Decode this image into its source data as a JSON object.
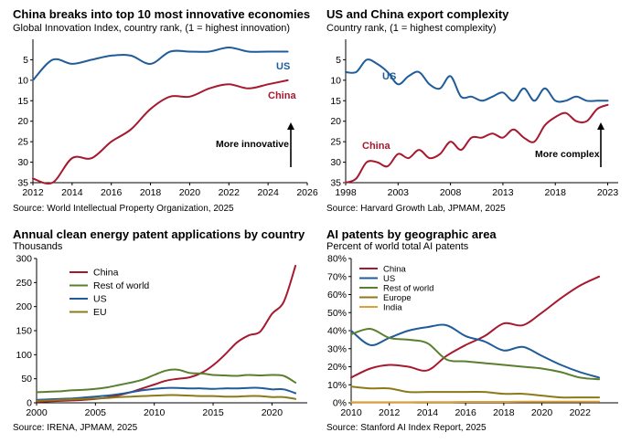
{
  "colors": {
    "china": "#A6192E",
    "us": "#1F5C99",
    "row": "#5B7F2F",
    "eu": "#8C7A1A",
    "india": "#E0A030",
    "axis": "#000000",
    "grid": "#d9d9d9"
  },
  "chart_data": [
    {
      "id": "gii",
      "type": "line",
      "title": "China breaks into top 10 most innovative economies",
      "subtitle": "Global Innovation Index, country rank, (1 = highest innovation)",
      "source": "Source: World Intellectual Property Organization, 2025",
      "annotation": "More innovative",
      "x_ticks": [
        "2012",
        "2014",
        "2016",
        "2018",
        "2020",
        "2022",
        "2024",
        "2026"
      ],
      "y_ticks": [
        "5",
        "10",
        "15",
        "20",
        "25",
        "30",
        "35"
      ],
      "xlim": [
        2012,
        2026
      ],
      "ylim": [
        35,
        0
      ],
      "series": [
        {
          "name": "US",
          "label": "US",
          "color": "#1F5C99",
          "x": [
            2012,
            2013,
            2014,
            2015,
            2016,
            2017,
            2018,
            2019,
            2020,
            2021,
            2022,
            2023,
            2024,
            2025
          ],
          "y": [
            10,
            5,
            6,
            5,
            4,
            4,
            6,
            3,
            3,
            3,
            2,
            3,
            3,
            3
          ]
        },
        {
          "name": "China",
          "label": "China",
          "color": "#A6192E",
          "x": [
            2012,
            2013,
            2014,
            2015,
            2016,
            2017,
            2018,
            2019,
            2020,
            2021,
            2022,
            2023,
            2024,
            2025
          ],
          "y": [
            34,
            35,
            29,
            29,
            25,
            22,
            17,
            14,
            14,
            12,
            11,
            12,
            11,
            10
          ]
        }
      ]
    },
    {
      "id": "eci",
      "type": "line",
      "title": "US and China export complexity",
      "subtitle": "Country rank, (1 = highest complexity)",
      "source": "Source: Harvard Growth Lab, JPMAM, 2025",
      "annotation": "More complex",
      "x_ticks": [
        "1998",
        "2003",
        "2008",
        "2013",
        "2018",
        "2023"
      ],
      "y_ticks": [
        "5",
        "10",
        "15",
        "20",
        "25",
        "30",
        "35"
      ],
      "xlim": [
        1998,
        2024
      ],
      "ylim": [
        35,
        0
      ],
      "series": [
        {
          "name": "US",
          "label": "US",
          "color": "#1F5C99",
          "x": [
            1998,
            1999,
            2000,
            2001,
            2002,
            2003,
            2004,
            2005,
            2006,
            2007,
            2008,
            2009,
            2010,
            2011,
            2012,
            2013,
            2014,
            2015,
            2016,
            2017,
            2018,
            2019,
            2020,
            2021,
            2022,
            2023
          ],
          "y": [
            8,
            8,
            5,
            6,
            8,
            11,
            9,
            8,
            11,
            12,
            9,
            14,
            14,
            15,
            14,
            13,
            15,
            12,
            15,
            12,
            15,
            15,
            14,
            15,
            15,
            15
          ]
        },
        {
          "name": "China",
          "label": "China",
          "color": "#A6192E",
          "x": [
            1998,
            1999,
            2000,
            2001,
            2002,
            2003,
            2004,
            2005,
            2006,
            2007,
            2008,
            2009,
            2010,
            2011,
            2012,
            2013,
            2014,
            2015,
            2016,
            2017,
            2018,
            2019,
            2020,
            2021,
            2022,
            2023
          ],
          "y": [
            35,
            34,
            30,
            30,
            31,
            28,
            29,
            27,
            29,
            28,
            25,
            27,
            24,
            24,
            23,
            24,
            22,
            24,
            25,
            21,
            19,
            18,
            20,
            20,
            17,
            16
          ]
        }
      ]
    },
    {
      "id": "clean",
      "type": "line",
      "title": "Annual clean energy patent applications by country",
      "subtitle": "Thousands",
      "source": "Source: IRENA, JPMAM, 2025",
      "x_ticks": [
        "2000",
        "2005",
        "2010",
        "2015",
        "2020"
      ],
      "y_ticks": [
        "0",
        "50",
        "100",
        "150",
        "200",
        "250",
        "300"
      ],
      "xlim": [
        2000,
        2023
      ],
      "ylim": [
        0,
        300
      ],
      "legend": "top-left",
      "series": [
        {
          "name": "China",
          "color": "#A6192E",
          "x": [
            2000,
            2001,
            2002,
            2003,
            2004,
            2005,
            2006,
            2007,
            2008,
            2009,
            2010,
            2011,
            2012,
            2013,
            2014,
            2015,
            2016,
            2017,
            2018,
            2019,
            2020,
            2021,
            2022
          ],
          "y": [
            2,
            3,
            4,
            5,
            6,
            8,
            11,
            16,
            22,
            30,
            38,
            46,
            50,
            53,
            62,
            78,
            100,
            125,
            140,
            148,
            185,
            210,
            285
          ]
        },
        {
          "name": "Rest of world",
          "color": "#5B7F2F",
          "x": [
            2000,
            2001,
            2002,
            2003,
            2004,
            2005,
            2006,
            2007,
            2008,
            2009,
            2010,
            2011,
            2012,
            2013,
            2014,
            2015,
            2016,
            2017,
            2018,
            2019,
            2020,
            2021,
            2022
          ],
          "y": [
            22,
            23,
            24,
            26,
            27,
            29,
            32,
            37,
            42,
            48,
            58,
            67,
            69,
            62,
            61,
            58,
            57,
            56,
            58,
            57,
            58,
            56,
            42
          ]
        },
        {
          "name": "US",
          "color": "#1F5C99",
          "x": [
            2000,
            2001,
            2002,
            2003,
            2004,
            2005,
            2006,
            2007,
            2008,
            2009,
            2010,
            2011,
            2012,
            2013,
            2014,
            2015,
            2016,
            2017,
            2018,
            2019,
            2020,
            2021,
            2022
          ],
          "y": [
            6,
            7,
            8,
            9,
            11,
            13,
            15,
            18,
            22,
            26,
            29,
            31,
            31,
            30,
            30,
            29,
            30,
            30,
            31,
            31,
            28,
            28,
            20
          ]
        },
        {
          "name": "EU",
          "color": "#8C7A1A",
          "x": [
            2000,
            2001,
            2002,
            2003,
            2004,
            2005,
            2006,
            2007,
            2008,
            2009,
            2010,
            2011,
            2012,
            2013,
            2014,
            2015,
            2016,
            2017,
            2018,
            2019,
            2020,
            2021,
            2022
          ],
          "y": [
            4,
            5,
            6,
            7,
            8,
            9,
            10,
            12,
            13,
            14,
            15,
            16,
            16,
            15,
            14,
            14,
            13,
            13,
            14,
            14,
            12,
            12,
            8
          ]
        }
      ]
    },
    {
      "id": "ai",
      "type": "line",
      "title": "AI patents by geographic area",
      "subtitle": "Percent of world total AI patents",
      "source": "Source: Stanford AI Index Report, 2025",
      "x_ticks": [
        "2010",
        "2012",
        "2014",
        "2016",
        "2018",
        "2020",
        "2022"
      ],
      "y_ticks": [
        "0%",
        "10%",
        "20%",
        "30%",
        "40%",
        "50%",
        "60%",
        "70%",
        "80%"
      ],
      "xlim": [
        2010,
        2024
      ],
      "ylim": [
        0,
        80
      ],
      "legend": "top-left",
      "series": [
        {
          "name": "China",
          "color": "#A6192E",
          "x": [
            2010,
            2011,
            2012,
            2013,
            2014,
            2015,
            2016,
            2017,
            2018,
            2019,
            2020,
            2021,
            2022,
            2023
          ],
          "y": [
            14,
            19,
            21,
            20,
            18,
            26,
            32,
            37,
            44,
            43,
            50,
            58,
            65,
            70
          ]
        },
        {
          "name": "US",
          "color": "#1F5C99",
          "x": [
            2010,
            2011,
            2012,
            2013,
            2014,
            2015,
            2016,
            2017,
            2018,
            2019,
            2020,
            2021,
            2022,
            2023
          ],
          "y": [
            40,
            32,
            36,
            40,
            42,
            43,
            37,
            34,
            29,
            31,
            26,
            21,
            17,
            14
          ]
        },
        {
          "name": "Rest of world",
          "color": "#5B7F2F",
          "x": [
            2010,
            2011,
            2012,
            2013,
            2014,
            2015,
            2016,
            2017,
            2018,
            2019,
            2020,
            2021,
            2022,
            2023
          ],
          "y": [
            38,
            41,
            36,
            35,
            33,
            24,
            23,
            22,
            21,
            20,
            19,
            17,
            14,
            13
          ]
        },
        {
          "name": "Europe",
          "color": "#8C7A1A",
          "x": [
            2010,
            2011,
            2012,
            2013,
            2014,
            2015,
            2016,
            2017,
            2018,
            2019,
            2020,
            2021,
            2022,
            2023
          ],
          "y": [
            9,
            8,
            8,
            6,
            6,
            6,
            6,
            6,
            5,
            5,
            4,
            3,
            3,
            3
          ]
        },
        {
          "name": "India",
          "color": "#E0A030",
          "x": [
            2010,
            2011,
            2012,
            2013,
            2014,
            2015,
            2016,
            2017,
            2018,
            2019,
            2020,
            2021,
            2022,
            2023
          ],
          "y": [
            0.3,
            0.3,
            0.3,
            0.3,
            0.4,
            0.4,
            0.5,
            0.5,
            0.5,
            0.6,
            0.6,
            0.6,
            0.6,
            0.6
          ]
        }
      ]
    }
  ]
}
